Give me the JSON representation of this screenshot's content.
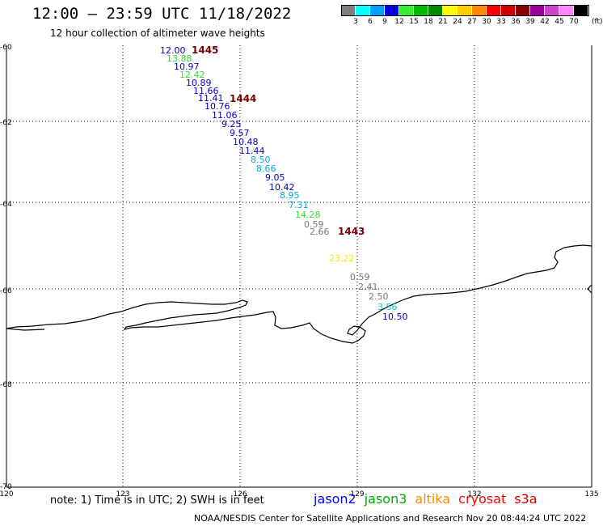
{
  "header": {
    "title": "12:00 – 23:59 UTC 11/18/2022",
    "subtitle": "12 hour collection of altimeter wave heights"
  },
  "legend": {
    "unit": "(ft)",
    "items": [
      {
        "label": "3",
        "color": "#7f7f7f"
      },
      {
        "label": "6",
        "color": "#00ffff"
      },
      {
        "label": "9",
        "color": "#00a0ff"
      },
      {
        "label": "12",
        "color": "#0000e0"
      },
      {
        "label": "15",
        "color": "#33ee33"
      },
      {
        "label": "18",
        "color": "#00bb00"
      },
      {
        "label": "21",
        "color": "#008800"
      },
      {
        "label": "24",
        "color": "#ffff00"
      },
      {
        "label": "27",
        "color": "#ffcc00"
      },
      {
        "label": "30",
        "color": "#ff8800"
      },
      {
        "label": "33",
        "color": "#ff0000"
      },
      {
        "label": "36",
        "color": "#cc0000"
      },
      {
        "label": "39",
        "color": "#880000"
      },
      {
        "label": "42",
        "color": "#990099"
      },
      {
        "label": "45",
        "color": "#cc44cc"
      },
      {
        "label": "70",
        "color": "#ff88ff"
      },
      {
        "label": "",
        "color": "#000000"
      }
    ]
  },
  "map": {
    "lat_labels": [
      "-60",
      "-62",
      "-64",
      "-66",
      "-68",
      "-70"
    ],
    "lon_labels": [
      "120",
      "123",
      "126",
      "129",
      "132",
      "135"
    ],
    "wave_heights": [
      {
        "value": "12.00",
        "color": "#0000cc"
      },
      {
        "value": "13.88",
        "color": "#33dd33"
      },
      {
        "value": "10.97",
        "color": "#0000cc"
      },
      {
        "value": "12.42",
        "color": "#33dd33"
      },
      {
        "value": "10.89",
        "color": "#0000cc"
      },
      {
        "value": "11.66",
        "color": "#0000cc"
      },
      {
        "value": "11.41",
        "color": "#0000cc"
      },
      {
        "value": "10.76",
        "color": "#0000cc"
      },
      {
        "value": "11.06",
        "color": "#0000cc"
      },
      {
        "value": "9.25",
        "color": "#0000cc"
      },
      {
        "value": "9.57",
        "color": "#0000cc"
      },
      {
        "value": "10.48",
        "color": "#0000cc"
      },
      {
        "value": "11.44",
        "color": "#0000cc"
      },
      {
        "value": "8.50",
        "color": "#00aadd"
      },
      {
        "value": "8.66",
        "color": "#00aadd"
      },
      {
        "value": "9.05",
        "color": "#0000cc"
      },
      {
        "value": "10.42",
        "color": "#0000cc"
      },
      {
        "value": "8.95",
        "color": "#00aadd"
      },
      {
        "value": "7.31",
        "color": "#00aadd"
      },
      {
        "value": "14.28",
        "color": "#33dd33"
      },
      {
        "value": "0.59",
        "color": "#777777"
      },
      {
        "value": "2.66",
        "color": "#777777"
      },
      {
        "value": "23.22",
        "color": "#eeee00"
      },
      {
        "value": "0.59",
        "color": "#777777"
      },
      {
        "value": "2.41",
        "color": "#777777"
      },
      {
        "value": "2.50",
        "color": "#777777"
      },
      {
        "value": "3.56",
        "color": "#00cccc"
      },
      {
        "value": "10.50",
        "color": "#0000cc"
      }
    ],
    "orbits": [
      "1445",
      "1444",
      "1443"
    ]
  },
  "footer": {
    "note": "note: 1) Time is in UTC; 2) SWH is in feet",
    "satellites": [
      {
        "name": "jason2",
        "color": "#0000ff"
      },
      {
        "name": "jason3",
        "color": "#00aa00"
      },
      {
        "name": "altika",
        "color": "#ff8800"
      },
      {
        "name": "cryosat",
        "color": "#ff0000"
      },
      {
        "name": "s3a",
        "color": "#cc0000"
      }
    ],
    "credit": "NOAA/NESDIS Center for Satellite Applications and Research    Nov 20 08:44:24 UTC 2022"
  }
}
